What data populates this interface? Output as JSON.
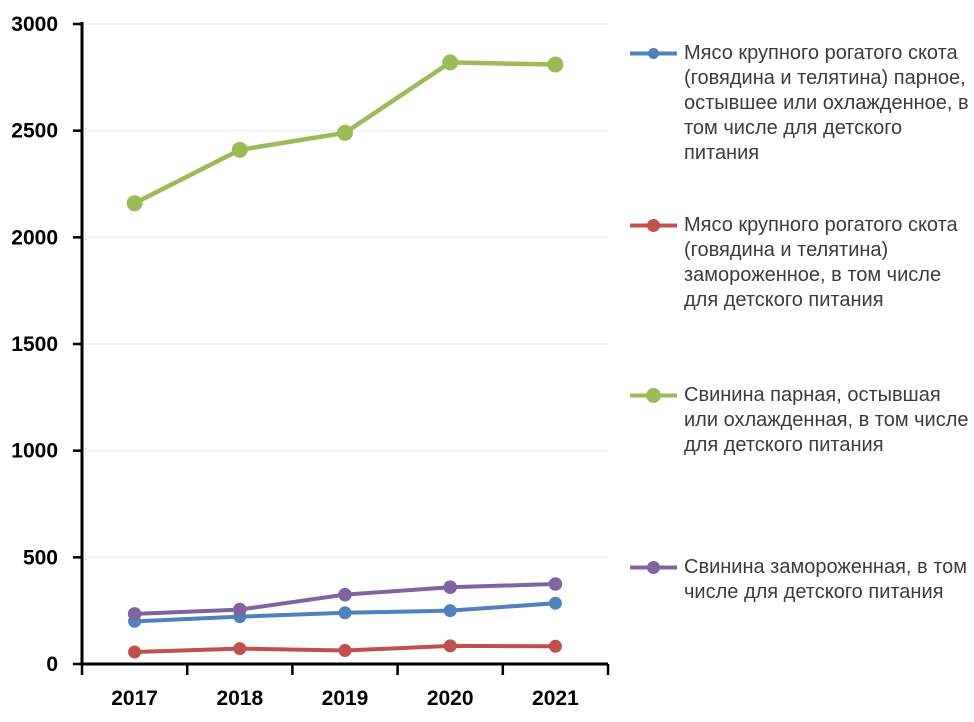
{
  "chart_data": {
    "type": "line",
    "title": "",
    "xlabel": "",
    "ylabel": "",
    "categories": [
      "2017",
      "2018",
      "2019",
      "2020",
      "2021"
    ],
    "series": [
      {
        "name": "Мясо крупного рогатого скота (говядина и телятина) парное, остывшее или охлажденное, в том числе для детского питания",
        "color": "#4F81BD",
        "values": [
          200,
          222,
          240,
          250,
          285
        ]
      },
      {
        "name": "Мясо крупного рогатого скота (говядина и телятина) замороженное, в том числе для детского питания",
        "color": "#C0504D",
        "values": [
          56,
          72,
          63,
          85,
          83
        ]
      },
      {
        "name": "Свинина парная, остывшая или охлажденная, в том числе для детского питания",
        "color": "#9BBB59",
        "values": [
          2160,
          2410,
          2490,
          2820,
          2810
        ]
      },
      {
        "name": "Свинина замороженная, в том числе для детского питания",
        "color": "#8064A2",
        "values": [
          235,
          255,
          325,
          360,
          375
        ]
      }
    ],
    "ylim": [
      0,
      3000
    ],
    "yticks": [
      0,
      500,
      1000,
      1500,
      2000,
      2500,
      3000
    ],
    "grid": true,
    "legend_position": "right"
  },
  "colors": {
    "background": "#FFFFFF",
    "gridline": "#F2F2F2",
    "axis": "#000000",
    "tick_label": "#000000",
    "legend_text": "#3C3C3C"
  }
}
